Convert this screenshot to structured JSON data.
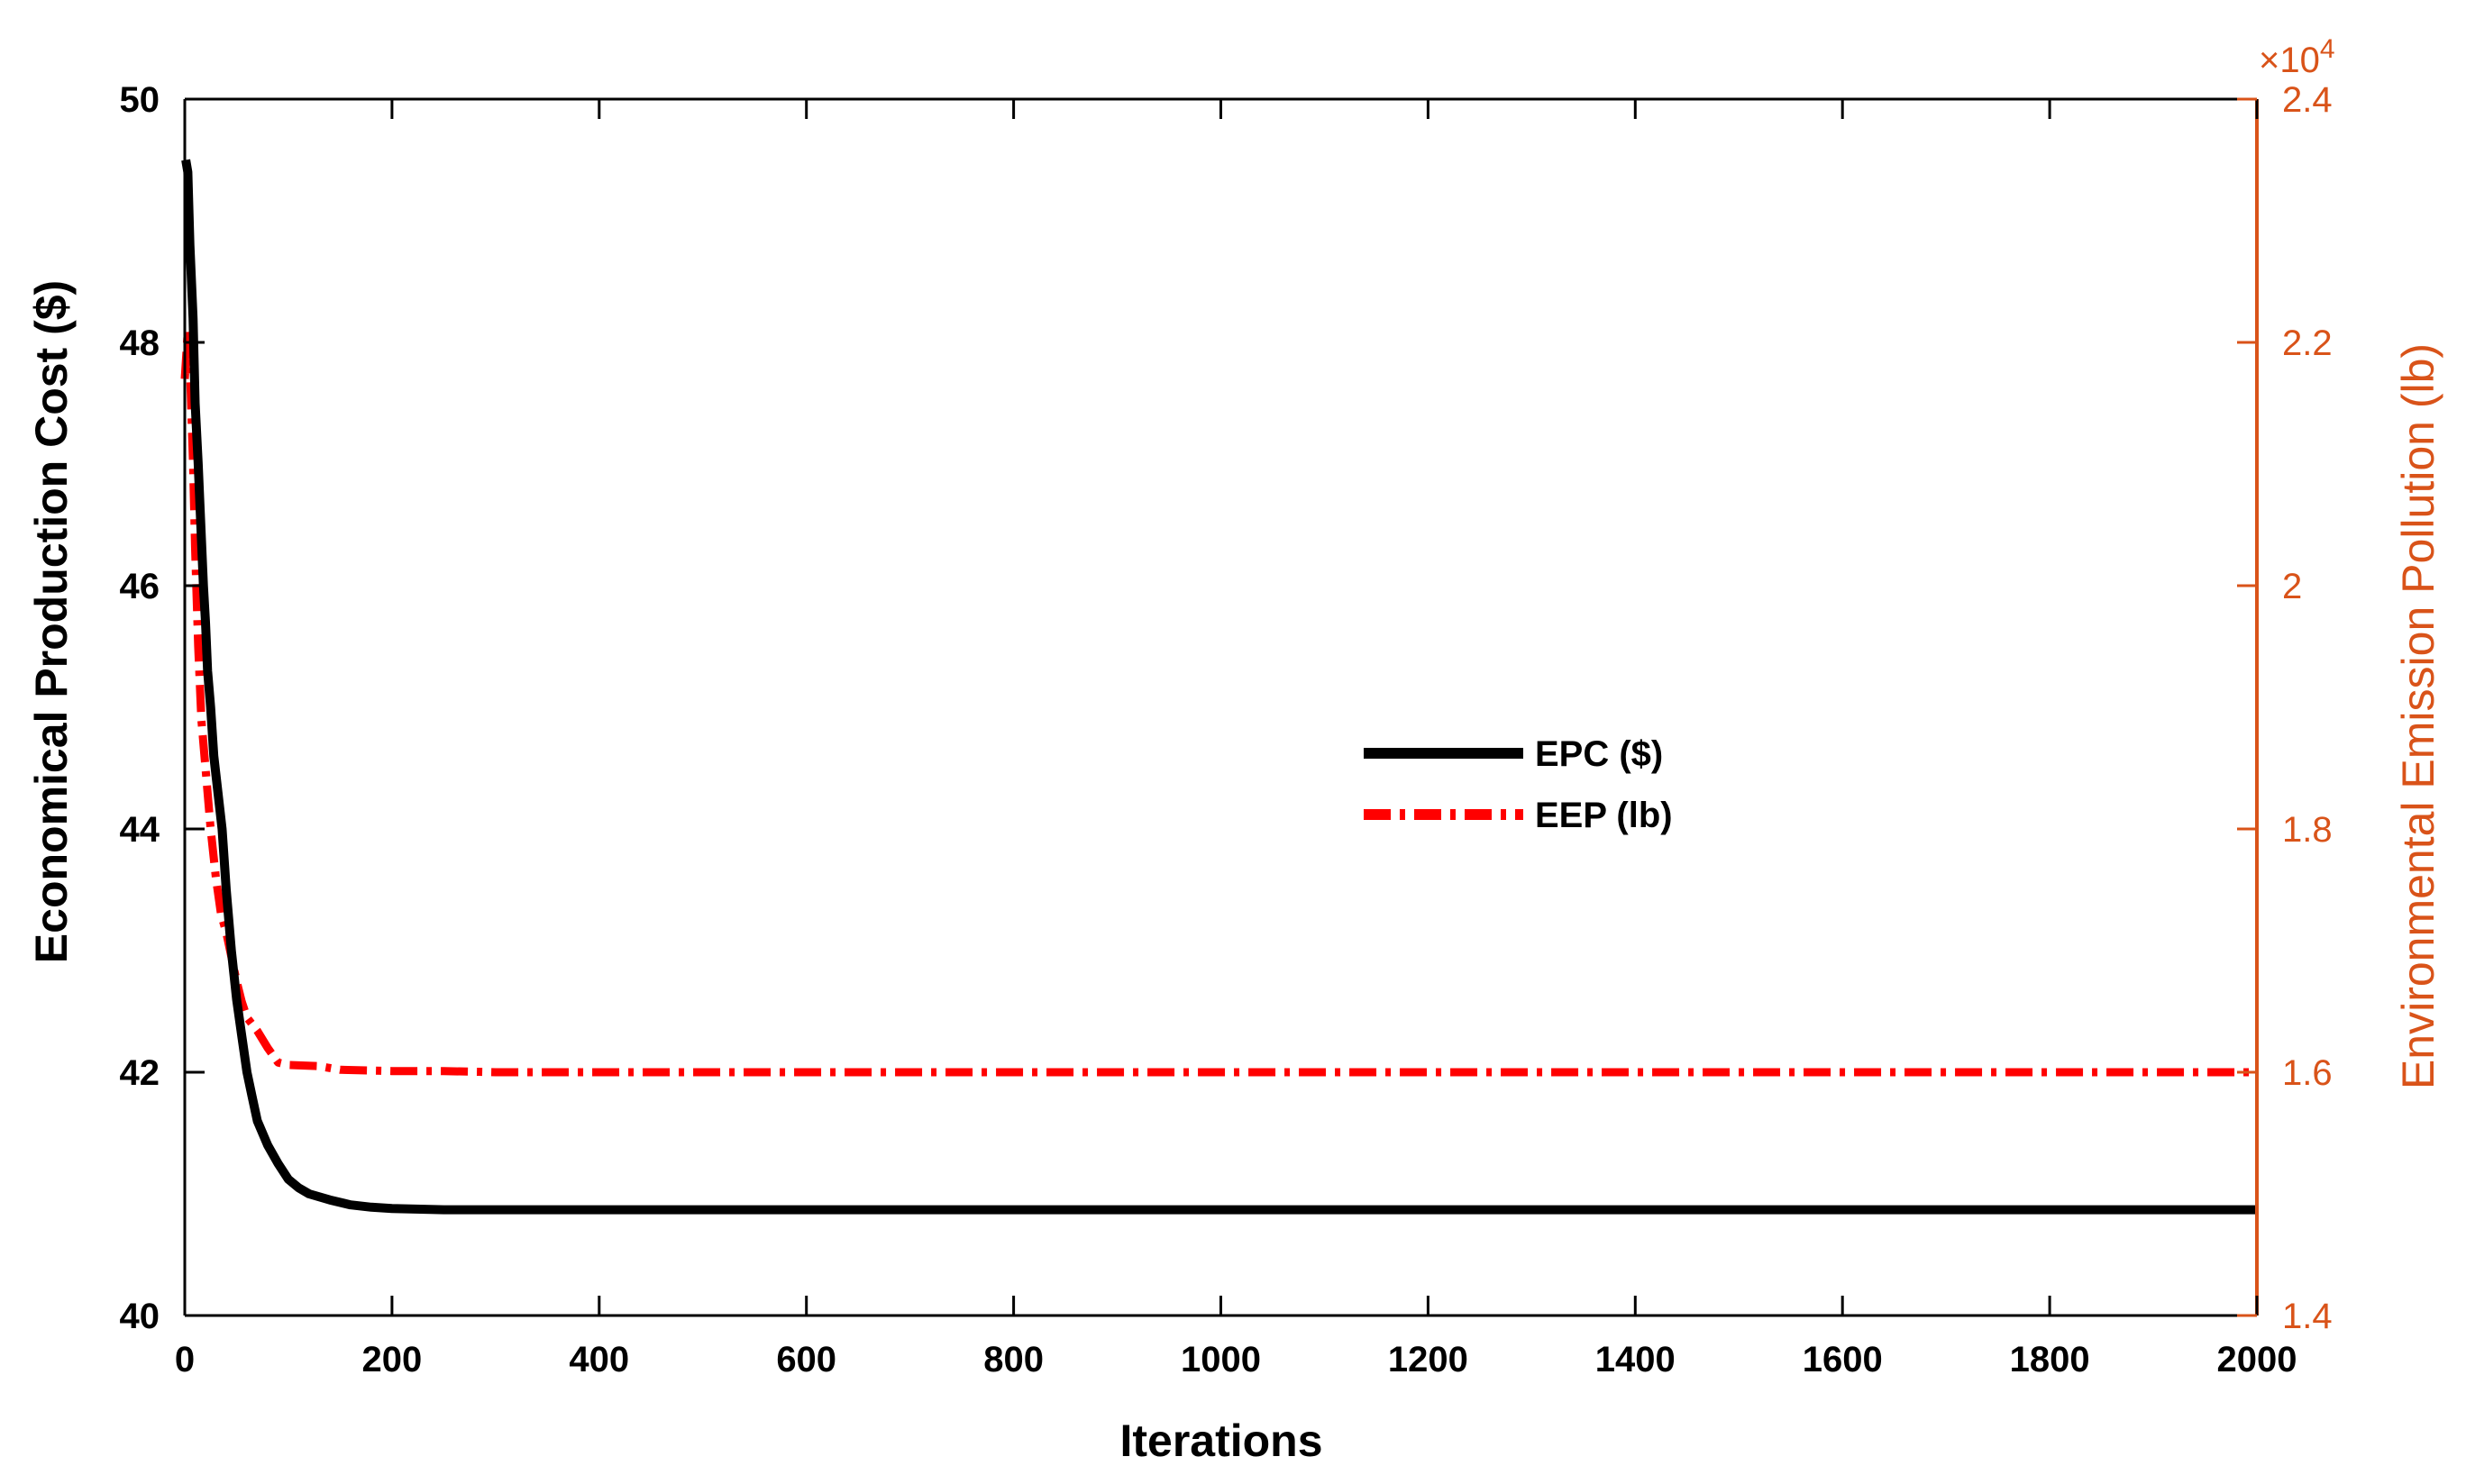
{
  "chart_data": {
    "type": "line",
    "title": "",
    "xlabel": "Iterations",
    "ylabel_left": "Economical Production Cost ($)",
    "ylabel_right": "Environmental Emission Pollution (lb)",
    "xlim": [
      0,
      2000
    ],
    "ylim_left": [
      40,
      50
    ],
    "ylim_right": [
      14000,
      24000
    ],
    "x_ticks": [
      "0",
      "200",
      "400",
      "600",
      "800",
      "1000",
      "1200",
      "1400",
      "1600",
      "1800",
      "2000"
    ],
    "y_left_ticks": [
      "40",
      "42",
      "44",
      "46",
      "48",
      "50"
    ],
    "y_right_ticks": [
      "1.4",
      "1.6",
      "1.8",
      "2",
      "2.2",
      "2.4"
    ],
    "y_right_multiplier": "×10",
    "y_right_multiplier_exp": "4",
    "grid": false,
    "legend_position": "center",
    "colors": {
      "left_axis": "#000000",
      "right_axis": "#D95319",
      "epc_line": "#000000",
      "eep_line": "#FF0000"
    },
    "series": [
      {
        "name": "EPC ($)",
        "axis": "left",
        "style": "solid",
        "points": [
          [
            1,
            49.5
          ],
          [
            3,
            49.4
          ],
          [
            5,
            48.8
          ],
          [
            8,
            48.2
          ],
          [
            10,
            47.5
          ],
          [
            13,
            47.0
          ],
          [
            15,
            46.6
          ],
          [
            18,
            46.0
          ],
          [
            20,
            45.7
          ],
          [
            22,
            45.3
          ],
          [
            25,
            45.0
          ],
          [
            28,
            44.6
          ],
          [
            32,
            44.3
          ],
          [
            36,
            44.0
          ],
          [
            40,
            43.5
          ],
          [
            45,
            43.0
          ],
          [
            50,
            42.6
          ],
          [
            55,
            42.3
          ],
          [
            60,
            42.0
          ],
          [
            65,
            41.8
          ],
          [
            70,
            41.6
          ],
          [
            80,
            41.4
          ],
          [
            90,
            41.25
          ],
          [
            100,
            41.12
          ],
          [
            110,
            41.05
          ],
          [
            120,
            41.0
          ],
          [
            140,
            40.95
          ],
          [
            160,
            40.91
          ],
          [
            180,
            40.89
          ],
          [
            200,
            40.88
          ],
          [
            250,
            40.87
          ],
          [
            300,
            40.87
          ],
          [
            500,
            40.87
          ],
          [
            1000,
            40.87
          ],
          [
            1500,
            40.87
          ],
          [
            2000,
            40.87
          ]
        ]
      },
      {
        "name": "EEP (lb)",
        "axis": "right",
        "style": "dashdot",
        "points": [
          [
            0,
            21700
          ],
          [
            3,
            22100
          ],
          [
            5,
            21800
          ],
          [
            8,
            21000
          ],
          [
            10,
            20300
          ],
          [
            13,
            19500
          ],
          [
            16,
            18900
          ],
          [
            20,
            18500
          ],
          [
            25,
            18000
          ],
          [
            30,
            17600
          ],
          [
            35,
            17300
          ],
          [
            40,
            17150
          ],
          [
            45,
            16950
          ],
          [
            50,
            16750
          ],
          [
            55,
            16580
          ],
          [
            60,
            16450
          ],
          [
            70,
            16340
          ],
          [
            80,
            16200
          ],
          [
            90,
            16080
          ],
          [
            100,
            16060
          ],
          [
            130,
            16050
          ],
          [
            150,
            16020
          ],
          [
            200,
            16010
          ],
          [
            250,
            16010
          ],
          [
            300,
            16000
          ],
          [
            400,
            16000
          ],
          [
            1000,
            16000
          ],
          [
            2000,
            16000
          ]
        ]
      }
    ]
  }
}
